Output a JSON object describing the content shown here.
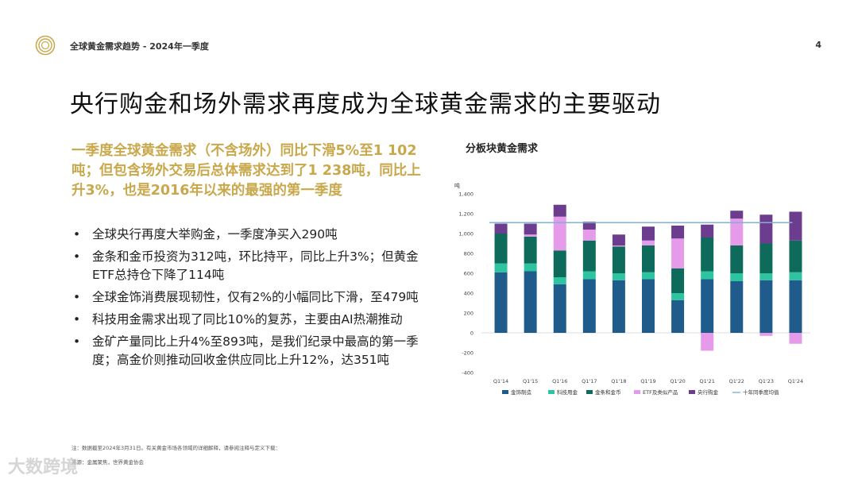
{
  "header": {
    "title": "全球黄金需求趋势 - 2024年一季度",
    "page_number": "4"
  },
  "slide": {
    "title": "央行购金和场外需求再度成为全球黄金需求的主要驱动",
    "headline": "一季度全球黄金需求（不含场外）同比下滑5%至1 102吨；但包含场外交易后总体需求达到了1 238吨，同比上升3%，也是2016年以来的最强的第一季度",
    "bullets": [
      "全球央行再度大举购金，一季度净买入290吨",
      "金条和金币投资为312吨，环比持平，同比上升3%；但黄金ETF总持仓下降了114吨",
      "全球金饰消费展现韧性，仅有2%的小幅同比下滑，至479吨",
      "科技用金需求出现了同比10%的复苏，主要由AI热潮推动",
      "金矿产量同比上升4%至893吨，是我们纪录中最高的第一季度；高金价则推动回收金供应同比上升12%，达351吨"
    ],
    "bullet_symbol": "•"
  },
  "footer": {
    "note": "注：数据截至2024年3月31日。有关黄金市场各领域的详细解释，请参阅注释与定义下载：",
    "source": "来源：金属聚焦，世界黄金协会",
    "watermark": "大数跨境"
  },
  "colors": {
    "gold": "#C9A84C",
    "jewellery": "#1F5C8B",
    "technology": "#2EC4A0",
    "bars_coins": "#0E6B5C",
    "etf": "#E59BEA",
    "central_banks": "#6C3C8E",
    "avg_line": "#7FB2D9"
  },
  "chart_data": {
    "type": "bar",
    "stacked": true,
    "title": "分板块黄金需求",
    "ylabel": "吨",
    "ylim": [
      -400,
      1400
    ],
    "yticks": [
      "1,400",
      "1,200",
      "1,000",
      "800",
      "600",
      "400",
      "200",
      "0",
      "-200",
      "-400"
    ],
    "ytick_values": [
      1400,
      1200,
      1000,
      800,
      600,
      400,
      200,
      0,
      -200,
      -400
    ],
    "categories": [
      "Q1'14",
      "Q1'15",
      "Q1'16",
      "Q1'17",
      "Q1'18",
      "Q1'19",
      "Q1'20",
      "Q1'21",
      "Q1'22",
      "Q1'23",
      "Q1'24"
    ],
    "series": [
      {
        "name": "金饰制造",
        "color_key": "jewellery",
        "values": [
          610,
          620,
          490,
          540,
          530,
          540,
          330,
          540,
          520,
          530,
          530
        ]
      },
      {
        "name": "科技用金",
        "color_key": "technology",
        "values": [
          90,
          80,
          70,
          80,
          70,
          70,
          70,
          80,
          80,
          70,
          80
        ]
      },
      {
        "name": "金条和金币",
        "color_key": "bars_coins",
        "values": [
          300,
          270,
          270,
          310,
          270,
          270,
          250,
          340,
          280,
          300,
          320
        ]
      },
      {
        "name": "ETF及类似产品",
        "color_key": "etf",
        "values": [
          0,
          20,
          340,
          110,
          10,
          50,
          300,
          -180,
          270,
          -30,
          -110
        ]
      },
      {
        "name": "央行购金",
        "color_key": "central_banks",
        "values": [
          100,
          110,
          120,
          80,
          110,
          140,
          130,
          130,
          80,
          290,
          290
        ]
      }
    ],
    "ten_year_average": {
      "name": "十年同季度均值",
      "color_key": "avg_line",
      "value": 1110
    },
    "legend_position": "bottom"
  }
}
